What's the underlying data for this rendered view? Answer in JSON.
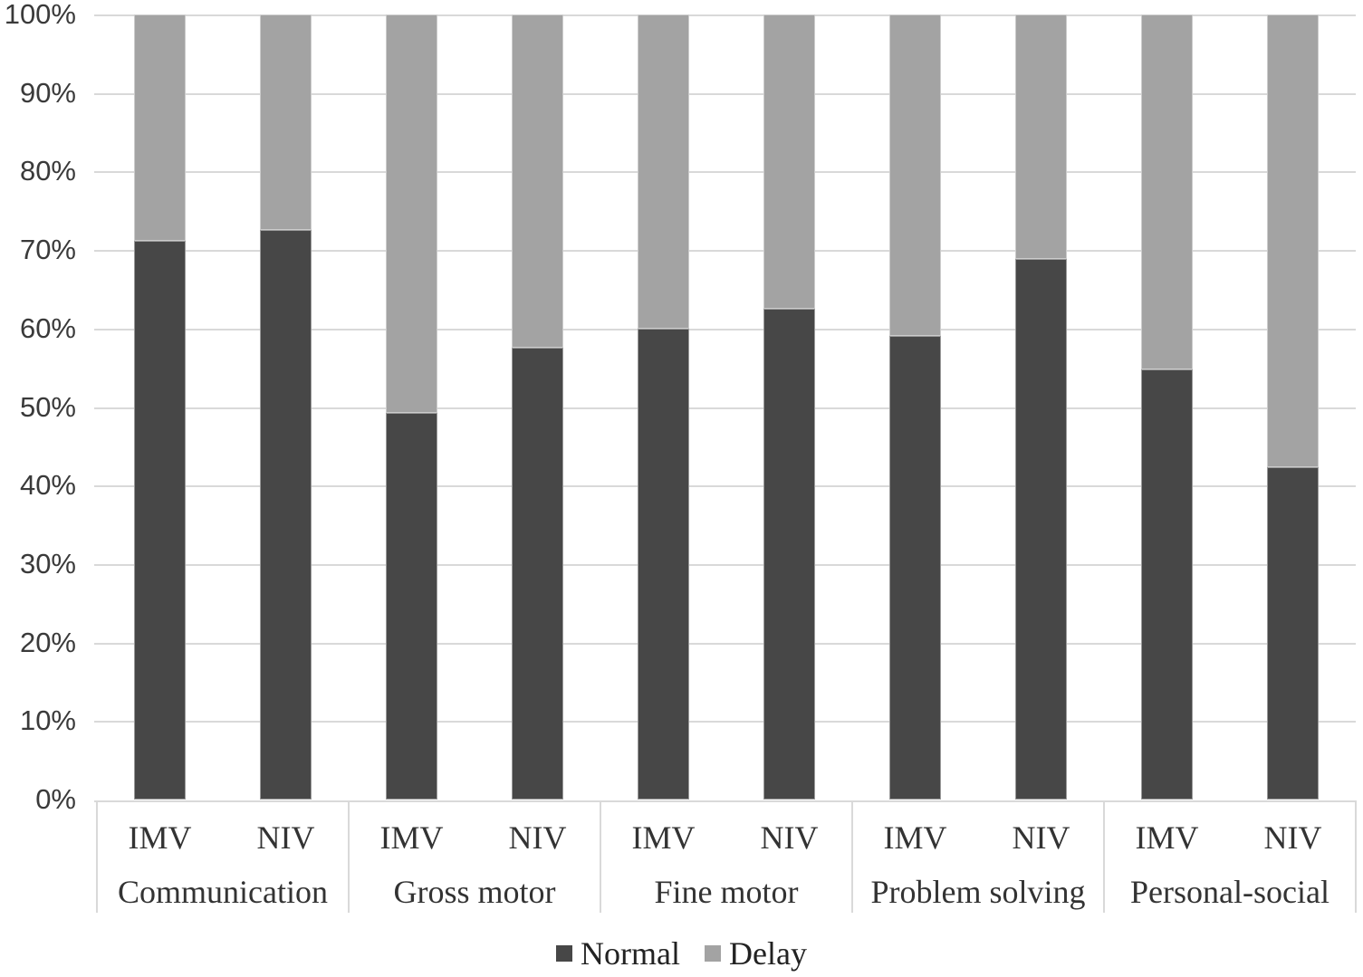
{
  "chart_data": {
    "type": "bar",
    "subtype": "stacked-100-percent",
    "title": "",
    "xlabel": "",
    "ylabel": "",
    "ylim": [
      0,
      100
    ],
    "grid": "horizontal",
    "y_ticks": [
      "0%",
      "10%",
      "20%",
      "30%",
      "40%",
      "50%",
      "60%",
      "70%",
      "80%",
      "90%",
      "100%"
    ],
    "groups": [
      "Communication",
      "Gross motor",
      "Fine motor",
      "Problem solving",
      "Personal-social"
    ],
    "x_labels": [
      "IMV",
      "NIV",
      "IMV",
      "NIV",
      "IMV",
      "NIV",
      "IMV",
      "NIV",
      "IMV",
      "NIV"
    ],
    "series": [
      {
        "name": "Normal",
        "color": "#474747",
        "values": [
          71.2,
          72.6,
          49.3,
          57.6,
          60.0,
          62.5,
          59.0,
          68.9,
          54.8,
          42.3
        ]
      },
      {
        "name": "Delay",
        "color": "#a3a3a3",
        "values": [
          28.8,
          27.4,
          50.7,
          42.4,
          40.0,
          37.5,
          41.0,
          31.1,
          45.2,
          57.7
        ]
      }
    ],
    "legend": [
      {
        "label": "Normal",
        "color": "#474747"
      },
      {
        "label": "Delay",
        "color": "#a3a3a3"
      }
    ],
    "legend_position": "bottom",
    "colors": {
      "gridline": "#d9d9d9",
      "axis_text": "#3a3a3a",
      "category_text": "#333333",
      "background": "#ffffff"
    }
  }
}
